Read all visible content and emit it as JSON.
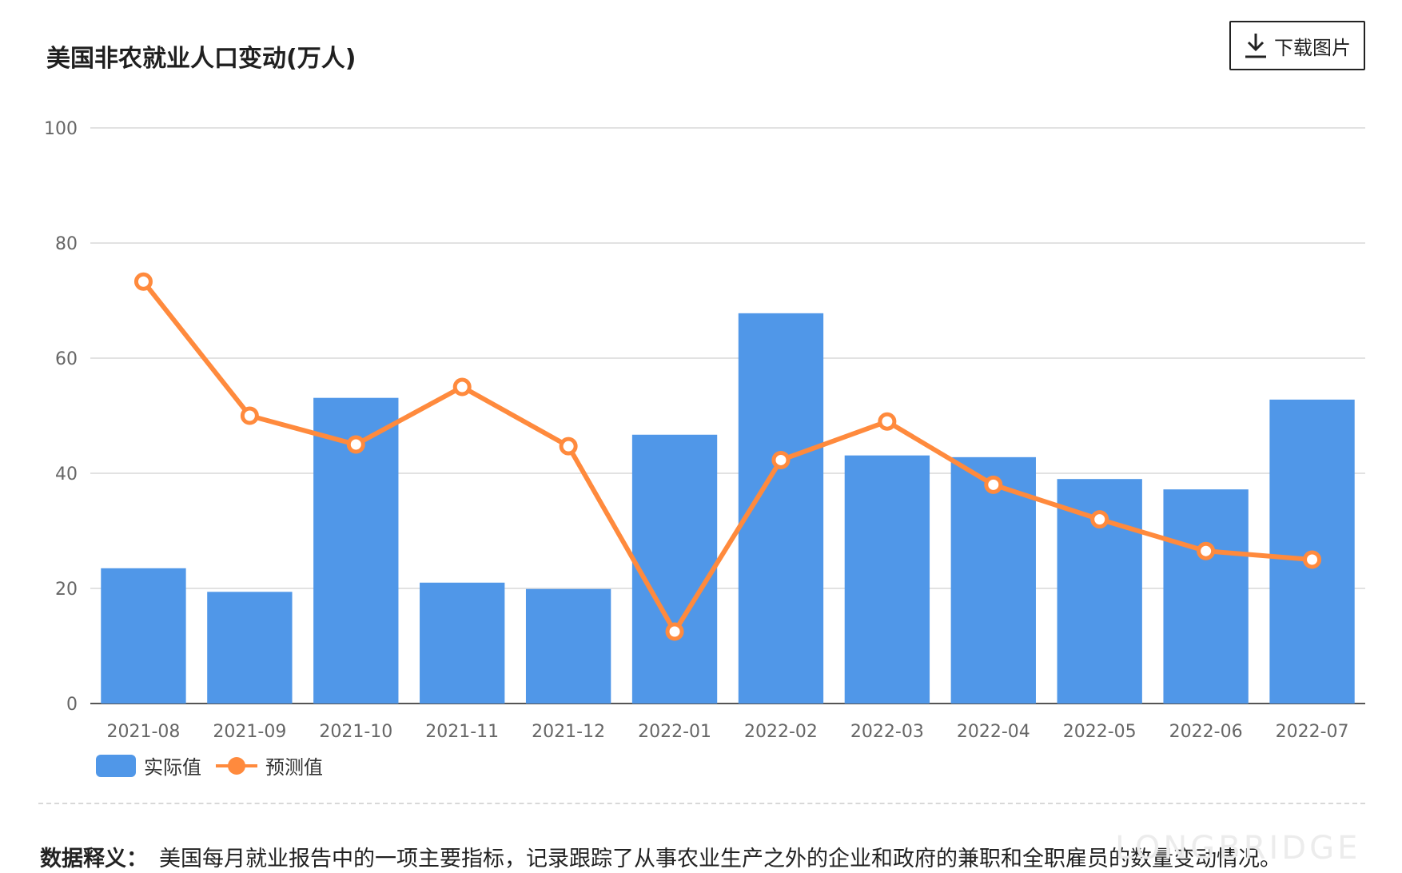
{
  "header": {
    "title": "美国非农就业人口变动(万人)",
    "download_label": "下载图片"
  },
  "footer": {
    "note_label": "数据释义：",
    "note_text": "美国每月就业报告中的一项主要指标，记录跟踪了从事农业生产之外的企业和政府的兼职和全职雇员的数量变动情况。",
    "watermark": "LONGBRIDGE"
  },
  "colors": {
    "bar": "#5097e8",
    "line": "#ff8a3d",
    "grid": "#d9d9d9",
    "axis": "#555555"
  },
  "chart_data": {
    "type": "bar",
    "title": "美国非农就业人口变动(万人)",
    "categories": [
      "2021-08",
      "2021-09",
      "2021-10",
      "2021-11",
      "2021-12",
      "2022-01",
      "2022-02",
      "2022-03",
      "2022-04",
      "2022-05",
      "2022-06",
      "2022-07"
    ],
    "series": [
      {
        "name": "实际值",
        "type": "bar",
        "values": [
          23.5,
          19.4,
          53.1,
          21.0,
          19.9,
          46.7,
          67.8,
          43.1,
          42.8,
          39.0,
          37.2,
          52.8
        ]
      },
      {
        "name": "预测值",
        "type": "line",
        "values": [
          73.3,
          50.0,
          45.0,
          55.0,
          44.7,
          12.5,
          42.3,
          49.0,
          38.0,
          32.0,
          26.5,
          25.0
        ]
      }
    ],
    "yticks": [
      0,
      20,
      40,
      60,
      80,
      100
    ],
    "ylim": [
      0,
      100
    ],
    "grid": true,
    "legend": "bottom-left"
  }
}
